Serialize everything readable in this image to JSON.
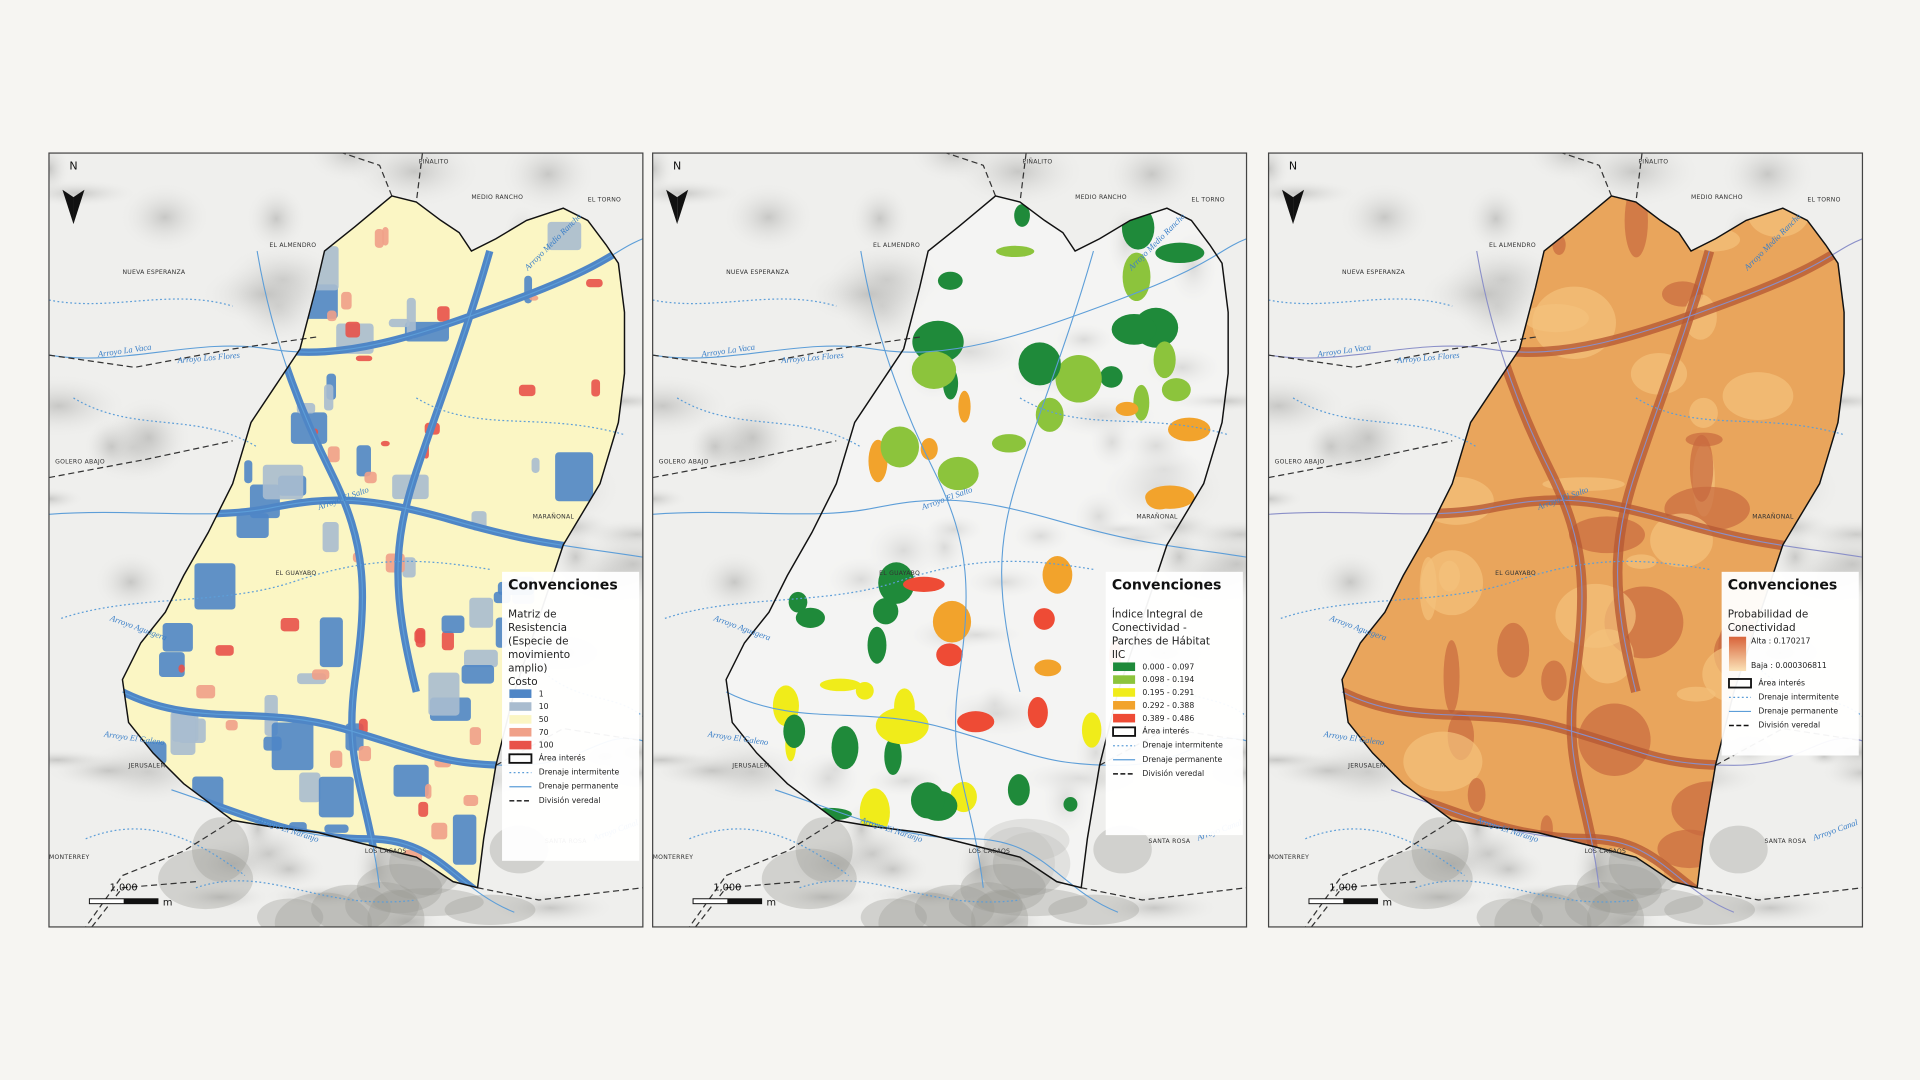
{
  "panels": [
    {
      "legend": {
        "title": "Convenciones",
        "heading": [
          "Matriz de",
          "Resistencia",
          "(Especie de",
          "movimiento",
          "amplio)"
        ],
        "subheading": "Costo",
        "items": [
          {
            "label": "1",
            "color": "#4f86c6"
          },
          {
            "label": "10",
            "color": "#a9bccf"
          },
          {
            "label": "50",
            "color": "#fbf6c4"
          },
          {
            "label": "70",
            "color": "#f0a088"
          },
          {
            "label": "100",
            "color": "#e8524a"
          }
        ]
      }
    },
    {
      "legend": {
        "title": "Convenciones",
        "heading": [
          "Índice Integral de",
          "Conectividad -",
          "Parches de Hábitat"
        ],
        "subheading": "IIC",
        "items": [
          {
            "label": "0.000 - 0.097",
            "color": "#1f8a3a"
          },
          {
            "label": "0.098 - 0.194",
            "color": "#8cc43c"
          },
          {
            "label": "0.195 - 0.291",
            "color": "#f0ec1a"
          },
          {
            "label": "0.292 - 0.388",
            "color": "#f2a32c"
          },
          {
            "label": "0.389 - 0.486",
            "color": "#ee4b35"
          }
        ]
      }
    },
    {
      "legend": {
        "title": "Convenciones",
        "heading": [
          "Probabilidad de",
          "Conectividad"
        ],
        "ramp": {
          "high": "Alta : 0.170217",
          "low": "Baja : 0.000306811",
          "high_color": "#d8633a",
          "low_color": "#fbe3b8"
        }
      }
    }
  ],
  "common_legend": [
    "Área interés",
    "Drenaje intermitente",
    "Drenaje permanente",
    "División veredal"
  ],
  "places": [
    "PIÑALITO",
    "MEDIO RANCHO",
    "EL TORNO",
    "EL ALMENDRO",
    "NUEVA ESPERANZA",
    "GOLERO ABAJO",
    "EL GUAYABO",
    "MARAÑONAL",
    "JERUSALEM",
    "MONTERREY",
    "LOS CACAOS",
    "SANTA ROSA"
  ],
  "rivers": [
    "Arroyo Medio Rancho",
    "Arroyo La Vaca",
    "Arroyo Los Flores",
    "Arroyo El Salto",
    "Arroyo Aguagera",
    "Arroyo El Galeno",
    "Arroyo El Naranjo",
    "Arroyo Canal"
  ],
  "north": "N",
  "scale": {
    "distance": "1,000",
    "unit": "m"
  }
}
